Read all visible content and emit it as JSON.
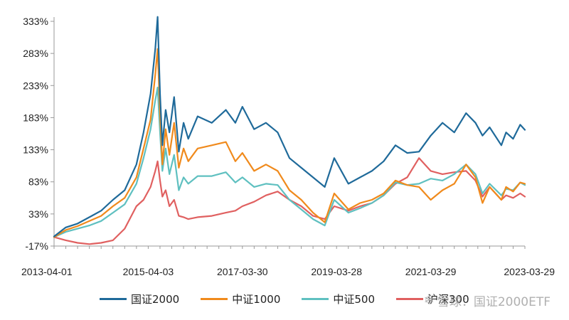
{
  "chart_data": {
    "type": "line",
    "title": "",
    "xlabel": "",
    "ylabel": "",
    "x_ticks": [
      "2013-04-01",
      "2015-04-03",
      "2017-03-30",
      "2019-03-28",
      "2021-03-29",
      "2023-03-29"
    ],
    "y_ticks": [
      "-17%",
      "33%",
      "83%",
      "133%",
      "183%",
      "233%",
      "283%",
      "333%"
    ],
    "y_tick_values": [
      -17,
      33,
      83,
      133,
      183,
      233,
      283,
      333
    ],
    "ylim": [
      -17,
      333
    ],
    "xlim": [
      2013.25,
      2023.25
    ],
    "grid": false,
    "legend_position": "bottom",
    "series": [
      {
        "name": "国证2000",
        "color": "#1f6a9a",
        "x": [
          2013.25,
          2013.5,
          2013.75,
          2014.0,
          2014.25,
          2014.5,
          2014.75,
          2015.0,
          2015.15,
          2015.3,
          2015.4,
          2015.45,
          2015.5,
          2015.55,
          2015.62,
          2015.7,
          2015.8,
          2015.9,
          2016.0,
          2016.1,
          2016.3,
          2016.6,
          2016.9,
          2017.1,
          2017.25,
          2017.5,
          2017.75,
          2018.0,
          2018.25,
          2018.5,
          2018.75,
          2019.0,
          2019.2,
          2019.5,
          2019.75,
          2020.0,
          2020.25,
          2020.5,
          2020.75,
          2021.0,
          2021.25,
          2021.5,
          2021.75,
          2022.0,
          2022.2,
          2022.35,
          2022.5,
          2022.75,
          2022.85,
          2023.0,
          2023.15,
          2023.25
        ],
        "y": [
          -2,
          12,
          18,
          28,
          38,
          55,
          70,
          110,
          160,
          220,
          290,
          340,
          220,
          140,
          195,
          160,
          215,
          130,
          175,
          150,
          185,
          175,
          195,
          175,
          200,
          165,
          175,
          160,
          120,
          105,
          90,
          75,
          120,
          80,
          90,
          100,
          115,
          140,
          128,
          130,
          155,
          175,
          160,
          190,
          175,
          155,
          168,
          140,
          160,
          150,
          172,
          164
        ]
      },
      {
        "name": "中证1000",
        "color": "#f08a1c",
        "x": [
          2013.25,
          2013.5,
          2013.75,
          2014.0,
          2014.25,
          2014.5,
          2014.75,
          2015.0,
          2015.15,
          2015.3,
          2015.4,
          2015.45,
          2015.5,
          2015.55,
          2015.62,
          2015.7,
          2015.8,
          2015.9,
          2016.0,
          2016.1,
          2016.3,
          2016.6,
          2016.9,
          2017.1,
          2017.25,
          2017.5,
          2017.75,
          2018.0,
          2018.25,
          2018.5,
          2018.75,
          2019.0,
          2019.2,
          2019.5,
          2019.75,
          2020.0,
          2020.25,
          2020.5,
          2020.75,
          2021.0,
          2021.25,
          2021.5,
          2021.75,
          2022.0,
          2022.2,
          2022.35,
          2022.5,
          2022.75,
          2022.85,
          2023.0,
          2023.15,
          2023.25
        ],
        "y": [
          -3,
          8,
          14,
          22,
          30,
          45,
          58,
          90,
          135,
          180,
          250,
          290,
          190,
          110,
          165,
          125,
          175,
          105,
          135,
          115,
          135,
          140,
          145,
          115,
          128,
          100,
          110,
          100,
          70,
          55,
          35,
          20,
          65,
          40,
          50,
          55,
          65,
          85,
          78,
          75,
          55,
          70,
          80,
          110,
          90,
          50,
          75,
          55,
          75,
          68,
          82,
          80
        ]
      },
      {
        "name": "中证500",
        "color": "#5fc0c0",
        "x": [
          2013.25,
          2013.5,
          2013.75,
          2014.0,
          2014.25,
          2014.5,
          2014.75,
          2015.0,
          2015.15,
          2015.3,
          2015.4,
          2015.45,
          2015.5,
          2015.55,
          2015.62,
          2015.7,
          2015.8,
          2015.9,
          2016.0,
          2016.1,
          2016.3,
          2016.6,
          2016.9,
          2017.1,
          2017.25,
          2017.5,
          2017.75,
          2018.0,
          2018.25,
          2018.5,
          2018.75,
          2019.0,
          2019.2,
          2019.5,
          2019.75,
          2020.0,
          2020.25,
          2020.5,
          2020.75,
          2021.0,
          2021.25,
          2021.5,
          2021.75,
          2022.0,
          2022.2,
          2022.35,
          2022.5,
          2022.75,
          2022.85,
          2023.0,
          2023.15,
          2023.25
        ],
        "y": [
          -3,
          5,
          10,
          15,
          22,
          35,
          48,
          80,
          120,
          165,
          210,
          230,
          160,
          100,
          135,
          95,
          125,
          70,
          90,
          80,
          92,
          92,
          98,
          82,
          90,
          75,
          80,
          78,
          55,
          40,
          25,
          15,
          55,
          35,
          42,
          50,
          62,
          82,
          78,
          80,
          88,
          85,
          95,
          110,
          95,
          65,
          80,
          62,
          72,
          70,
          82,
          78
        ]
      },
      {
        "name": "沪深300",
        "color": "#e06060",
        "x": [
          2013.25,
          2013.5,
          2013.75,
          2014.0,
          2014.25,
          2014.5,
          2014.75,
          2015.0,
          2015.15,
          2015.3,
          2015.4,
          2015.45,
          2015.5,
          2015.55,
          2015.62,
          2015.7,
          2015.8,
          2015.9,
          2016.0,
          2016.1,
          2016.3,
          2016.6,
          2016.9,
          2017.1,
          2017.25,
          2017.5,
          2017.75,
          2018.0,
          2018.25,
          2018.5,
          2018.75,
          2019.0,
          2019.2,
          2019.5,
          2019.75,
          2020.0,
          2020.25,
          2020.5,
          2020.75,
          2021.0,
          2021.25,
          2021.5,
          2021.75,
          2022.0,
          2022.2,
          2022.35,
          2022.5,
          2022.75,
          2022.85,
          2023.0,
          2023.15,
          2023.25
        ],
        "y": [
          -3,
          -8,
          -12,
          -14,
          -12,
          -8,
          10,
          45,
          55,
          75,
          100,
          115,
          85,
          60,
          70,
          45,
          55,
          30,
          28,
          25,
          28,
          30,
          35,
          38,
          45,
          52,
          62,
          68,
          55,
          45,
          30,
          25,
          45,
          38,
          45,
          50,
          62,
          80,
          90,
          120,
          100,
          95,
          98,
          100,
          85,
          60,
          75,
          55,
          62,
          58,
          65,
          60
        ]
      }
    ]
  },
  "watermark": {
    "text": "雪球：国证2000ETF",
    "icon": "snowball-icon"
  }
}
